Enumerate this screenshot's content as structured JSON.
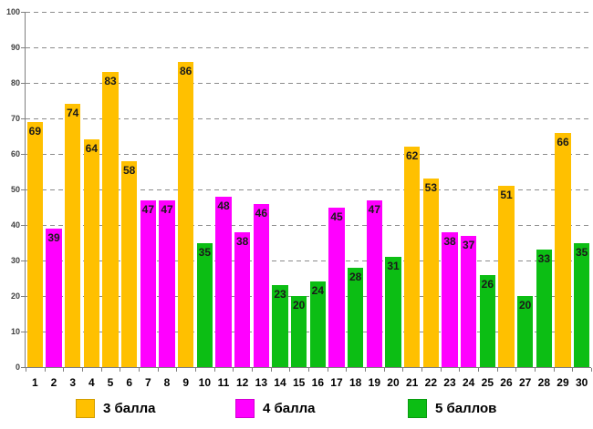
{
  "chart_data": {
    "type": "bar",
    "title": "",
    "xlabel": "",
    "ylabel": "",
    "ylim": [
      0,
      100
    ],
    "yticks": [
      0,
      10,
      20,
      30,
      40,
      50,
      60,
      70,
      80,
      90,
      100
    ],
    "grid": "horizontal-dashed",
    "legend_position": "bottom",
    "legend": [
      {
        "label": "3 балла",
        "color": "#FFC000"
      },
      {
        "label": "4 балла",
        "color": "#FF00FF"
      },
      {
        "label": "5 баллов",
        "color": "#0CBE14"
      }
    ],
    "categories": [
      "1",
      "2",
      "3",
      "4",
      "5",
      "6",
      "7",
      "8",
      "9",
      "10",
      "11",
      "12",
      "13",
      "14",
      "15",
      "16",
      "17",
      "18",
      "19",
      "20",
      "21",
      "22",
      "23",
      "24",
      "25",
      "26",
      "27",
      "28",
      "29",
      "30"
    ],
    "bars": [
      {
        "x": "1",
        "value": 69,
        "series": "3 балла"
      },
      {
        "x": "2",
        "value": 39,
        "series": "4 балла"
      },
      {
        "x": "3",
        "value": 74,
        "series": "3 балла"
      },
      {
        "x": "4",
        "value": 64,
        "series": "3 балла"
      },
      {
        "x": "5",
        "value": 83,
        "series": "3 балла"
      },
      {
        "x": "6",
        "value": 58,
        "series": "3 балла"
      },
      {
        "x": "7",
        "value": 47,
        "series": "4 балла"
      },
      {
        "x": "8",
        "value": 47,
        "series": "4 балла"
      },
      {
        "x": "9",
        "value": 86,
        "series": "3 балла"
      },
      {
        "x": "10",
        "value": 35,
        "series": "5 баллов"
      },
      {
        "x": "11",
        "value": 48,
        "series": "4 балла"
      },
      {
        "x": "12",
        "value": 38,
        "series": "4 балла"
      },
      {
        "x": "13",
        "value": 46,
        "series": "4 балла"
      },
      {
        "x": "14",
        "value": 23,
        "series": "5 баллов"
      },
      {
        "x": "15",
        "value": 20,
        "series": "5 баллов"
      },
      {
        "x": "16",
        "value": 24,
        "series": "5 баллов"
      },
      {
        "x": "17",
        "value": 45,
        "series": "4 балла"
      },
      {
        "x": "18",
        "value": 28,
        "series": "5 баллов"
      },
      {
        "x": "19",
        "value": 47,
        "series": "4 балла"
      },
      {
        "x": "20",
        "value": 31,
        "series": "5 баллов"
      },
      {
        "x": "21",
        "value": 62,
        "series": "3 балла"
      },
      {
        "x": "22",
        "value": 53,
        "series": "3 балла"
      },
      {
        "x": "23",
        "value": 38,
        "series": "4 балла"
      },
      {
        "x": "24",
        "value": 37,
        "series": "4 балла"
      },
      {
        "x": "25",
        "value": 26,
        "series": "5 баллов"
      },
      {
        "x": "26",
        "value": 51,
        "series": "3 балла"
      },
      {
        "x": "27",
        "value": 20,
        "series": "5 баллов"
      },
      {
        "x": "28",
        "value": 33,
        "series": "5 баллов"
      },
      {
        "x": "29",
        "value": 66,
        "series": "3 балла"
      },
      {
        "x": "30",
        "value": 35,
        "series": "5 баллов"
      }
    ]
  }
}
